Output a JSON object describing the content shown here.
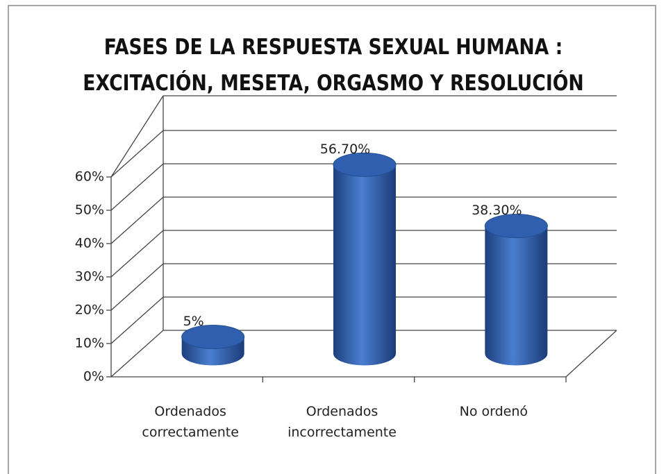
{
  "chart_data": {
    "type": "bar3d",
    "title": "FASES DE LA RESPUESTA SEXUAL HUMANA : EXCITACIÓN, MESETA, ORGASMO Y RESOLUCIÓN",
    "categories": [
      "Ordenados correctamente",
      "Ordenados incorrectamente",
      "No ordenó"
    ],
    "values": [
      5,
      56.7,
      38.3
    ],
    "value_labels": [
      "5%",
      "56.70%",
      "38.30%"
    ],
    "color": "#2f5fae",
    "ylim": [
      0,
      60
    ],
    "yticks": [
      {
        "value": 0,
        "label": "0%"
      },
      {
        "value": 10,
        "label": "10%"
      },
      {
        "value": 20,
        "label": "20%"
      },
      {
        "value": 30,
        "label": "30%"
      },
      {
        "value": 40,
        "label": "40%"
      },
      {
        "value": 50,
        "label": "50%"
      },
      {
        "value": 60,
        "label": "60%"
      }
    ],
    "grid": true
  }
}
